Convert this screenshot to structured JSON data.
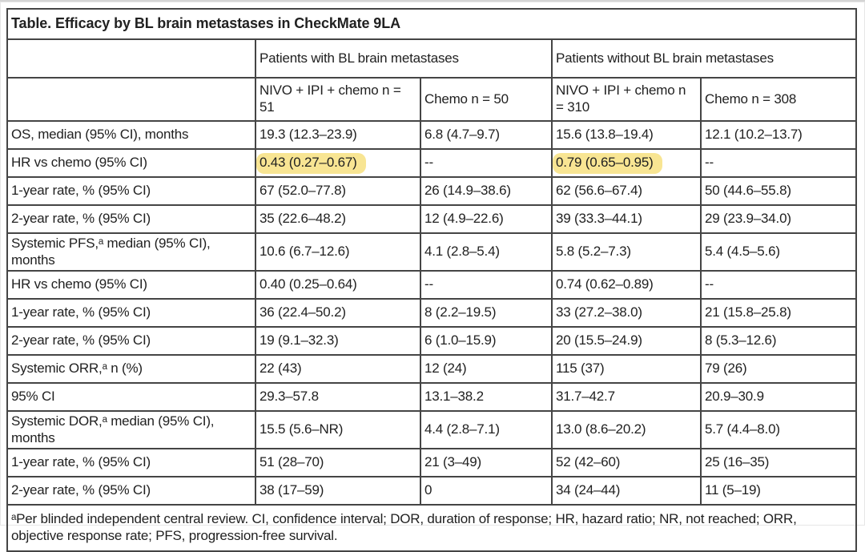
{
  "title": "Table. Efficacy by BL brain metastases in CheckMate 9LA",
  "table": {
    "group_headers": [
      "Patients with BL brain metastases",
      "Patients without BL brain metastases"
    ],
    "column_headers": [
      "NIVO + IPI + chemo n = 51",
      "Chemo n = 50",
      "NIVO + IPI + chemo n = 310",
      "Chemo n = 308"
    ],
    "rows": [
      {
        "label": "OS, median (95% CI), months",
        "values": [
          "19.3 (12.3–23.9)",
          "6.8 (4.7–9.7)",
          "15.6 (13.8–19.4)",
          "12.1 (10.2–13.7)"
        ],
        "highlight": []
      },
      {
        "label": "HR vs chemo (95% CI)",
        "values": [
          "0.43 (0.27–0.67)",
          "--",
          "0.79 (0.65–0.95)",
          "--"
        ],
        "highlight": [
          0,
          2
        ]
      },
      {
        "label": "1-year rate, % (95% CI)",
        "values": [
          "67 (52.0–77.8)",
          "26 (14.9–38.6)",
          "62 (56.6–67.4)",
          "50 (44.6–55.8)"
        ],
        "highlight": []
      },
      {
        "label": "2-year rate, % (95% CI)",
        "values": [
          "35 (22.6–48.2)",
          "12 (4.9–22.6)",
          "39 (33.3–44.1)",
          "29 (23.9–34.0)"
        ],
        "highlight": []
      },
      {
        "label": "Systemic PFS,ᵃ median (95% CI), months",
        "values": [
          "10.6 (6.7–12.6)",
          "4.1 (2.8–5.4)",
          "5.8 (5.2–7.3)",
          "5.4 (4.5–5.6)"
        ],
        "highlight": [],
        "tall": true
      },
      {
        "label": "HR vs chemo (95% CI)",
        "values": [
          "0.40 (0.25–0.64)",
          "--",
          "0.74 (0.62–0.89)",
          "--"
        ],
        "highlight": []
      },
      {
        "label": "1-year rate, % (95% CI)",
        "values": [
          "36 (22.4–50.2)",
          "8 (2.2–19.5)",
          "33 (27.2–38.0)",
          "21 (15.8–25.8)"
        ],
        "highlight": []
      },
      {
        "label": "2-year rate, % (95% CI)",
        "values": [
          "19 (9.1–32.3)",
          "6 (1.0–15.9)",
          "20 (15.5–24.9)",
          "8 (5.3–12.6)"
        ],
        "highlight": []
      },
      {
        "label": "Systemic ORR,ᵃ n (%)",
        "values": [
          "22 (43)",
          "12 (24)",
          "115 (37)",
          "79 (26)"
        ],
        "highlight": []
      },
      {
        "label": "95% CI",
        "values": [
          "29.3–57.8",
          "13.1–38.2",
          "31.7–42.7",
          "20.9–30.9"
        ],
        "highlight": []
      },
      {
        "label": "Systemic DOR,ᵃ median (95% CI), months",
        "values": [
          "15.5 (5.6–NR)",
          "4.4 (2.8–7.1)",
          "13.0 (8.6–20.2)",
          "5.7 (4.4–8.0)"
        ],
        "highlight": [],
        "tall": true
      },
      {
        "label": "1-year rate, % (95% CI)",
        "values": [
          "51 (28–70)",
          "21 (3–49)",
          "52 (42–60)",
          "25 (16–35)"
        ],
        "highlight": []
      },
      {
        "label": "2-year rate, % (95% CI)",
        "values": [
          "38 (17–59)",
          "0",
          "34 (24–44)",
          "11 (5–19)"
        ],
        "highlight": []
      }
    ]
  },
  "footnote": "ᵃPer blinded independent central review. CI, confidence interval; DOR, duration of response; HR, hazard ratio; NR, not reached; ORR, objective response rate; PFS, progression-free survival.",
  "colors": {
    "highlight": "#f8e593",
    "border": "#454545",
    "text": "#212121"
  }
}
